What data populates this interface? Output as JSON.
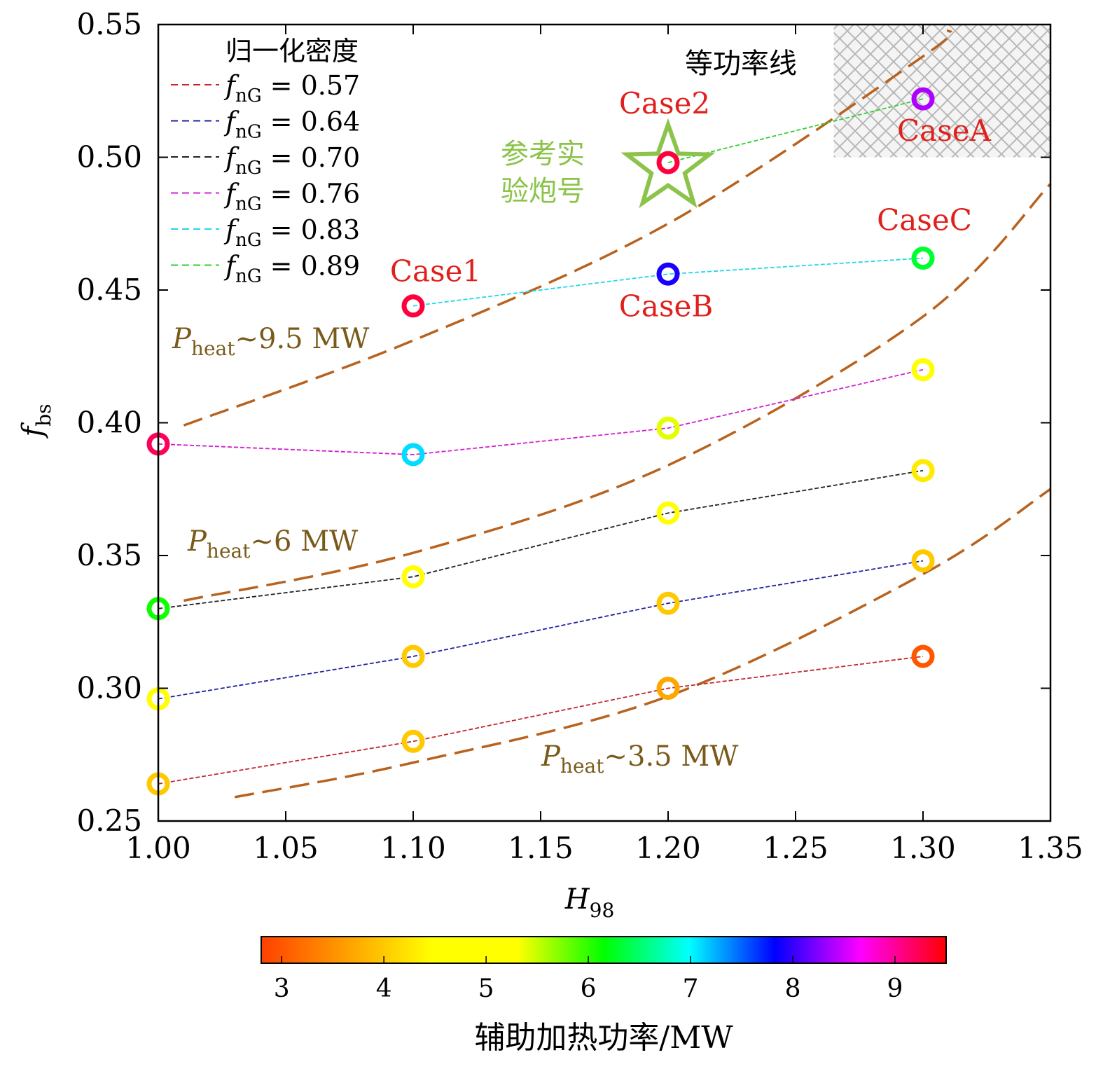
{
  "chart_data": {
    "type": "scatter",
    "xlabel": "H",
    "xlabel_sub": "98",
    "ylabel": "f",
    "ylabel_sub": "bs",
    "xlim": [
      1.0,
      1.35
    ],
    "ylim": [
      0.25,
      0.55
    ],
    "xticks": [
      "1.00",
      "1.05",
      "1.10",
      "1.15",
      "1.20",
      "1.25",
      "1.30",
      "1.35"
    ],
    "yticks": [
      "0.25",
      "0.30",
      "0.35",
      "0.40",
      "0.45",
      "0.50",
      "0.55"
    ],
    "legend": {
      "title": "归一化密度",
      "position": "top-left",
      "entry_prefix": "f",
      "entry_sub": "nG"
    },
    "series": [
      {
        "name": "= 0.57",
        "color": "#c0282d",
        "points": [
          {
            "x": 1.0,
            "y": 0.264,
            "p": 4.0
          },
          {
            "x": 1.1,
            "y": 0.28,
            "p": 4.0
          },
          {
            "x": 1.2,
            "y": 0.3,
            "p": 3.7
          },
          {
            "x": 1.3,
            "y": 0.312,
            "p": 3.0
          }
        ]
      },
      {
        "name": "= 0.64",
        "color": "#2020a0",
        "points": [
          {
            "x": 1.0,
            "y": 0.296,
            "p": 5.0
          },
          {
            "x": 1.1,
            "y": 0.312,
            "p": 4.0
          },
          {
            "x": 1.2,
            "y": 0.332,
            "p": 4.0
          },
          {
            "x": 1.3,
            "y": 0.348,
            "p": 4.0
          }
        ]
      },
      {
        "name": "= 0.70",
        "color": "#222222",
        "points": [
          {
            "x": 1.0,
            "y": 0.33,
            "p": 6.1
          },
          {
            "x": 1.1,
            "y": 0.342,
            "p": 5.0
          },
          {
            "x": 1.2,
            "y": 0.366,
            "p": 5.1
          },
          {
            "x": 1.3,
            "y": 0.382,
            "p": 4.3
          }
        ]
      },
      {
        "name": "= 0.76",
        "color": "#d020d0",
        "points": [
          {
            "x": 1.0,
            "y": 0.392,
            "p": 9.2
          },
          {
            "x": 1.1,
            "y": 0.388,
            "p": 7.1
          },
          {
            "x": 1.2,
            "y": 0.398,
            "p": 5.4
          },
          {
            "x": 1.3,
            "y": 0.42,
            "p": 5.0
          }
        ]
      },
      {
        "name": "= 0.83",
        "color": "#20d8e8",
        "points": [
          {
            "x": 1.1,
            "y": 0.444,
            "p": 9.3
          },
          {
            "x": 1.2,
            "y": 0.456,
            "p": 7.9
          },
          {
            "x": 1.3,
            "y": 0.462,
            "p": 6.3
          }
        ]
      },
      {
        "name": "= 0.89",
        "color": "#30d030",
        "points": [
          {
            "x": 1.2,
            "y": 0.498,
            "p": 9.3
          },
          {
            "x": 1.3,
            "y": 0.522,
            "p": 8.4
          }
        ]
      }
    ],
    "power_lines": [
      {
        "label": "~9.5 MW",
        "color": "#b8621e",
        "x": [
          1.01,
          1.1,
          1.2,
          1.3,
          1.31
        ],
        "y": [
          0.399,
          0.431,
          0.475,
          0.538,
          0.548
        ]
      },
      {
        "label": "~6 MW",
        "color": "#b8621e",
        "x": [
          1.01,
          1.1,
          1.2,
          1.3,
          1.35
        ],
        "y": [
          0.333,
          0.351,
          0.384,
          0.44,
          0.49
        ]
      },
      {
        "label": "~3.5 MW",
        "color": "#b8621e",
        "x": [
          1.03,
          1.1,
          1.2,
          1.3,
          1.35
        ],
        "y": [
          0.259,
          0.272,
          0.297,
          0.343,
          0.375
        ]
      }
    ],
    "power_label_prefix": "P",
    "power_label_sub": "heat",
    "annotations": {
      "power_lines_title": "等功率线",
      "reference_label_line1": "参考实",
      "reference_label_line2": "验炮号",
      "reference_point": {
        "x": 1.2,
        "y": 0.496
      },
      "cases": [
        {
          "text": "Case1",
          "x": 1.1,
          "y": 0.444
        },
        {
          "text": "Case2",
          "x": 1.2,
          "y": 0.498
        },
        {
          "text": "CaseA",
          "x": 1.3,
          "y": 0.522
        },
        {
          "text": "CaseB",
          "x": 1.2,
          "y": 0.456
        },
        {
          "text": "CaseC",
          "x": 1.3,
          "y": 0.462
        }
      ],
      "shaded_region": {
        "x": [
          1.265,
          1.35
        ],
        "y": [
          0.5,
          0.55
        ]
      }
    },
    "colorbar": {
      "label": "辅助加热功率/MW",
      "range": [
        2.8,
        9.5
      ],
      "ticks": [
        "3",
        "4",
        "5",
        "6",
        "7",
        "8",
        "9"
      ],
      "colors": [
        "#ff4000",
        "#ffa000",
        "#ffff00",
        "#ffff00",
        "#00ff00",
        "#00ffff",
        "#0000ff",
        "#ff00ff",
        "#ff0000"
      ]
    }
  }
}
